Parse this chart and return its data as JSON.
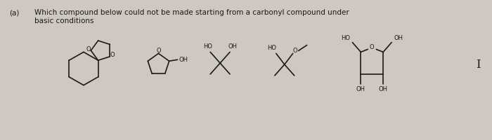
{
  "bg_color": "#cec8c0",
  "text_color": "#1a1a1a",
  "fig_width": 7.0,
  "fig_height": 2.0,
  "dpi": 100,
  "title_label": "(a)",
  "line1": "Which compound below could not be made starting from a carbonyl compound under",
  "line2": "basic conditions"
}
